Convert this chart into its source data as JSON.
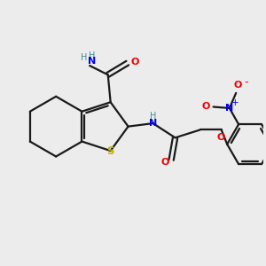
{
  "bg_color": "#ececec",
  "bond_color": "#1a1a1a",
  "S_color": "#b8b800",
  "N_color": "#0000ee",
  "O_color": "#ee0000",
  "H_color": "#3a9090",
  "lw": 1.6,
  "xlim": [
    0,
    10
  ],
  "ylim": [
    0,
    10
  ]
}
